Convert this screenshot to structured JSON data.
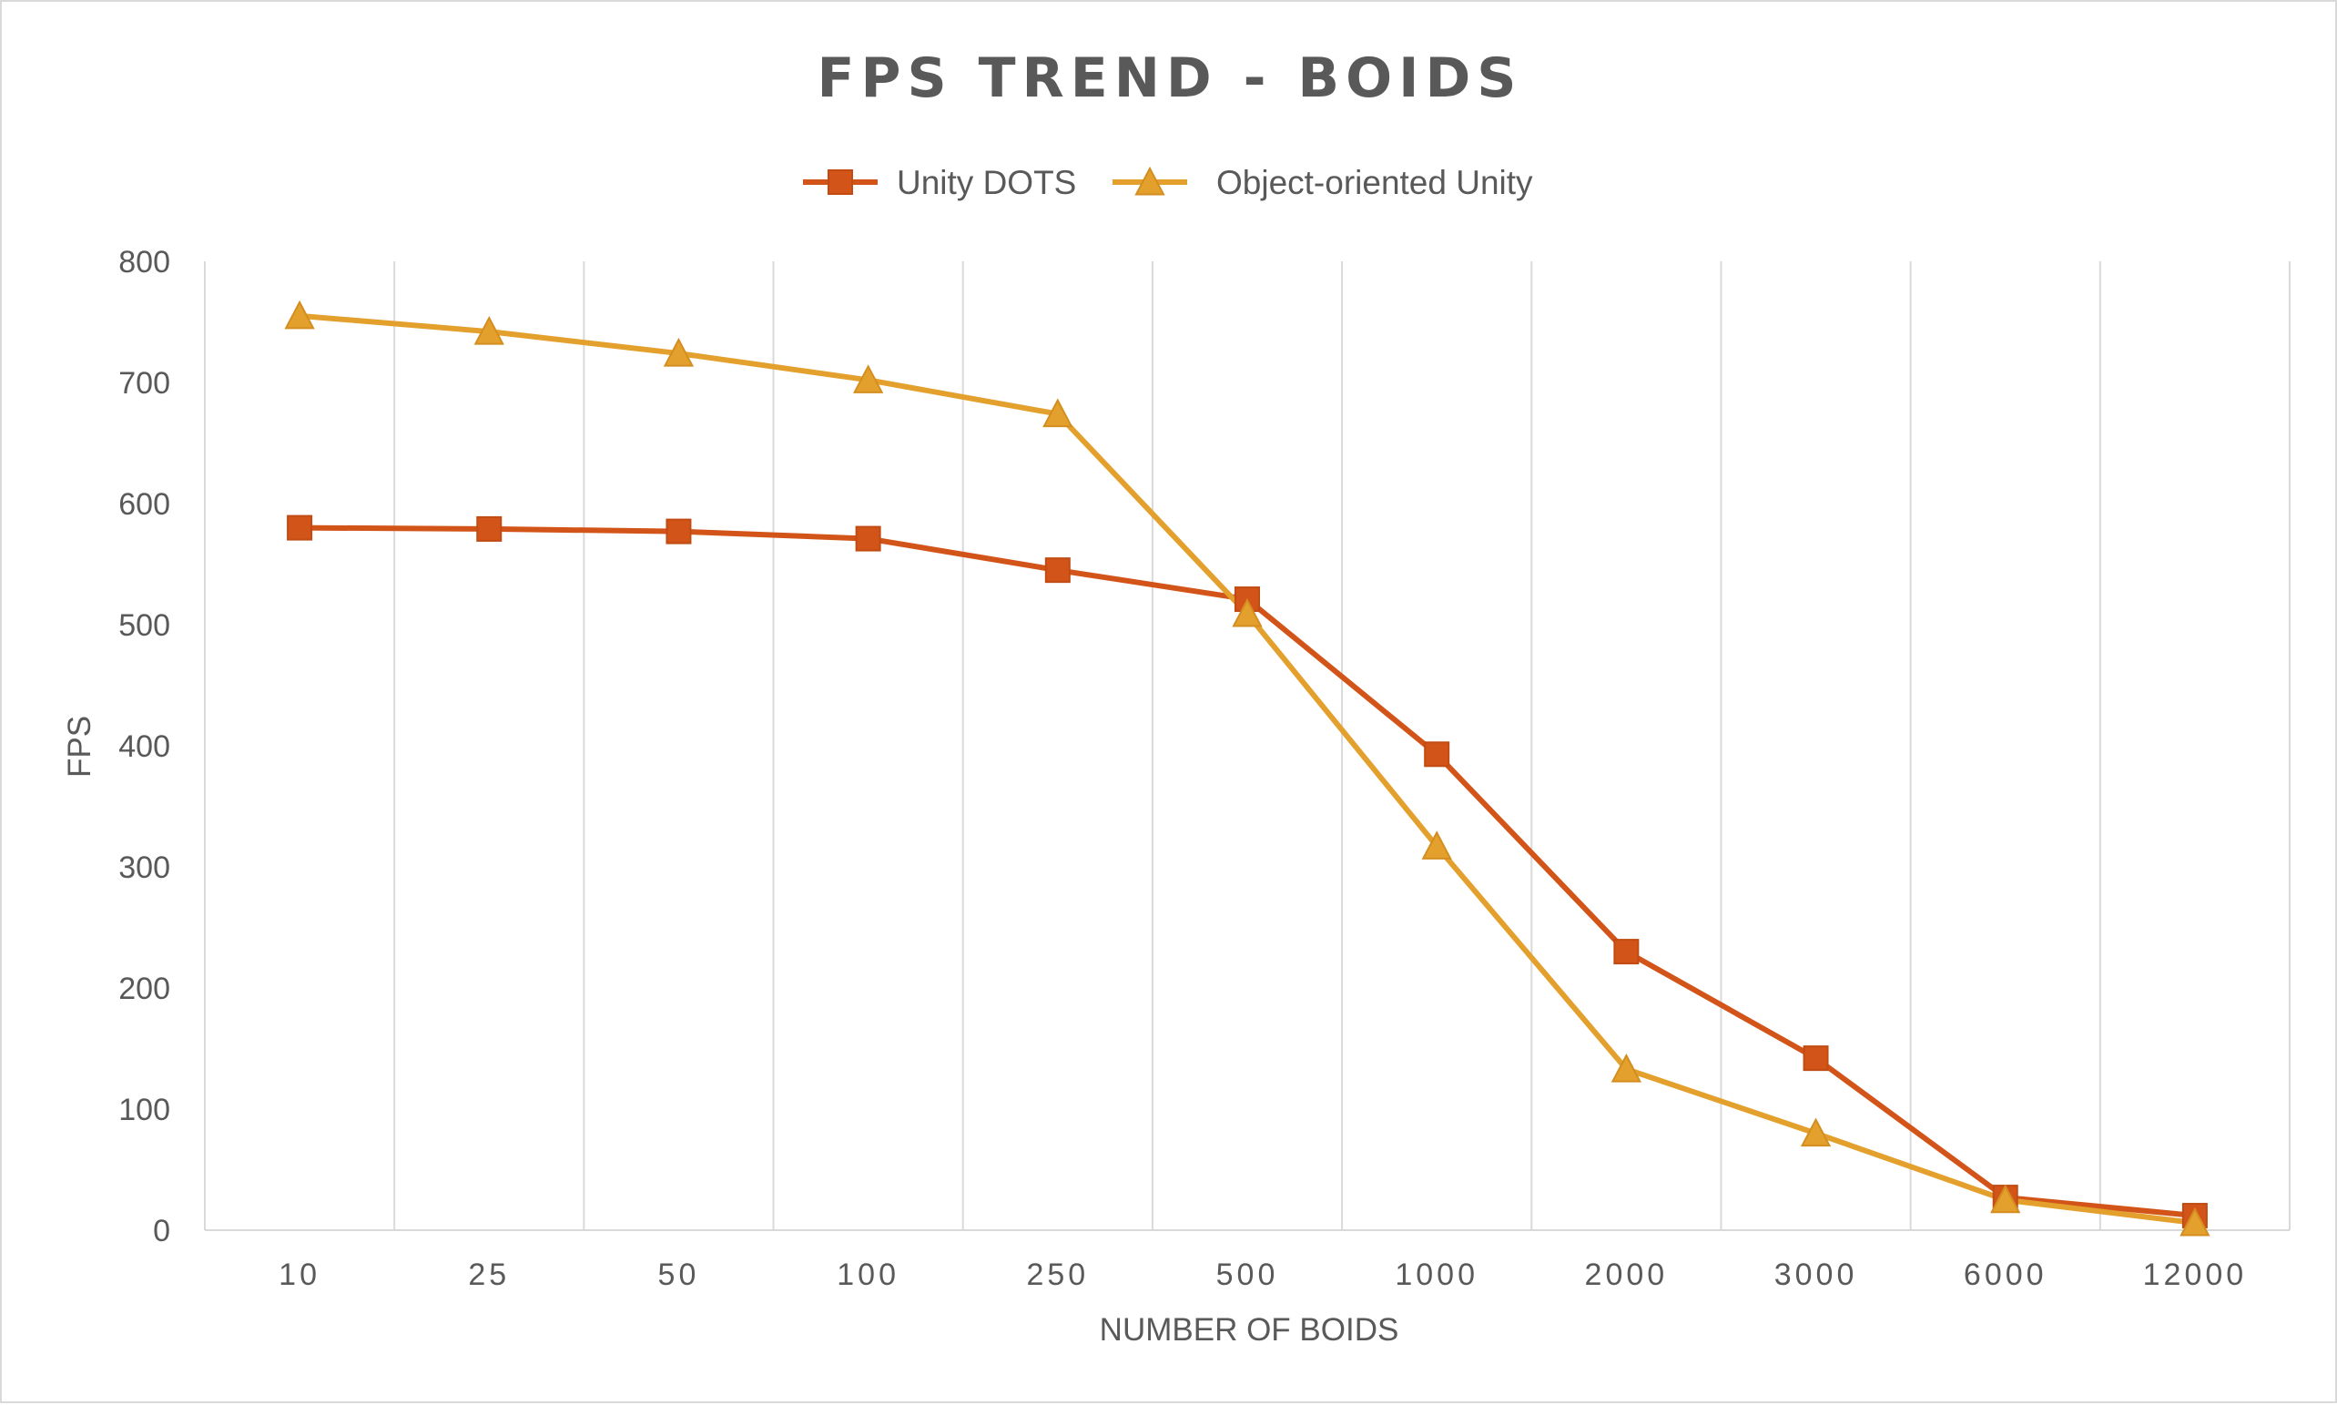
{
  "chart_data": {
    "type": "line",
    "title": "FPS TREND - BOIDS",
    "xlabel": "NUMBER OF BOIDS",
    "ylabel": "FPS",
    "categories": [
      "10",
      "25",
      "50",
      "100",
      "250",
      "500",
      "1000",
      "2000",
      "3000",
      "6000",
      "12000"
    ],
    "ylim": [
      0,
      800
    ],
    "yticks": [
      0,
      100,
      200,
      300,
      400,
      500,
      600,
      700,
      800
    ],
    "grid": "vertical",
    "legend_position": "top",
    "series": [
      {
        "name": "Unity DOTS",
        "color": "#d35419",
        "marker": "square",
        "values": [
          580,
          579,
          577,
          571,
          545,
          521,
          393,
          230,
          142,
          27,
          12
        ]
      },
      {
        "name": "Object-oriented Unity",
        "color": "#e4a02d",
        "marker": "triangle",
        "values": [
          755,
          742,
          724,
          702,
          674,
          509,
          317,
          133,
          80,
          25,
          6
        ]
      }
    ]
  }
}
